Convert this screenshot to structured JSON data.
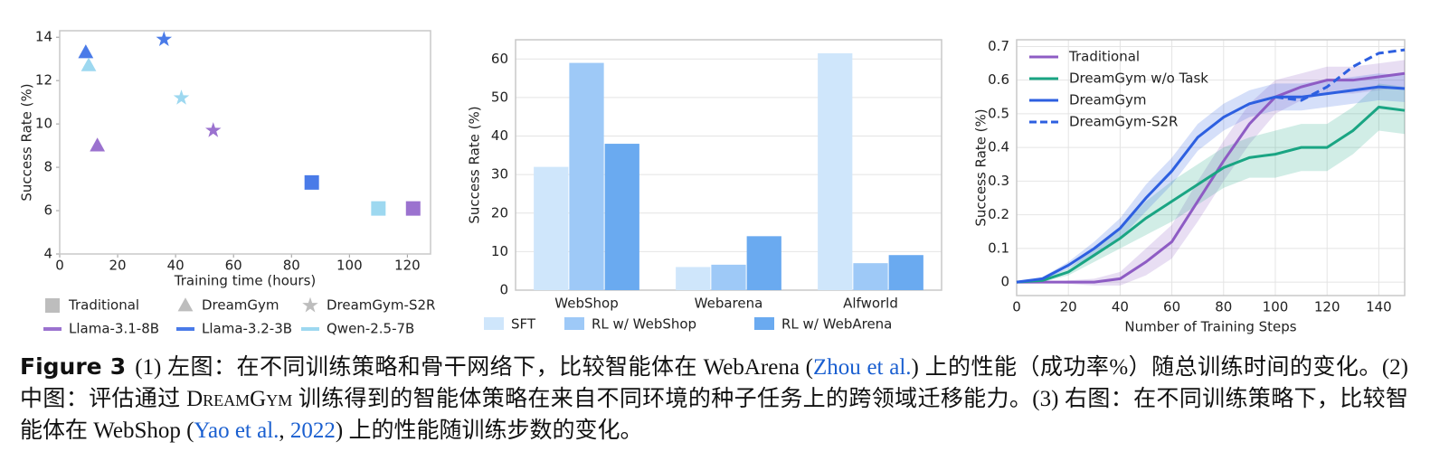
{
  "chart_data": [
    {
      "type": "scatter",
      "xlabel": "Training time (hours)",
      "ylabel": "Success Rate (%)",
      "xlim": [
        0,
        128
      ],
      "xticks": [
        0,
        20,
        40,
        60,
        80,
        100,
        120
      ],
      "ylim": [
        4,
        14.3
      ],
      "yticks": [
        4,
        6,
        8,
        10,
        12,
        14
      ],
      "grid": false,
      "methods": [
        {
          "name": "Traditional",
          "shape": "square"
        },
        {
          "name": "DreamGym",
          "shape": "triangle"
        },
        {
          "name": "DreamGym-S2R",
          "shape": "star"
        }
      ],
      "series": [
        {
          "name": "Llama-3.1-8B",
          "color": "#9b72cf",
          "x": [
            122,
            13,
            53
          ],
          "y": [
            6.1,
            9.0,
            9.7
          ]
        },
        {
          "name": "Llama-3.2-3B",
          "color": "#4a7be8",
          "x": [
            87,
            9,
            36
          ],
          "y": [
            7.3,
            13.3,
            13.9
          ]
        },
        {
          "name": "Qwen-2.5-7B",
          "color": "#9dd8f0",
          "x": [
            110,
            10,
            42
          ],
          "y": [
            6.1,
            12.7,
            11.2
          ]
        }
      ]
    },
    {
      "type": "bar",
      "ylabel": "Success Rate (%)",
      "categories": [
        "WebShop",
        "Webarena",
        "Alfworld"
      ],
      "ylim": [
        0,
        65
      ],
      "yticks": [
        0,
        10,
        20,
        30,
        40,
        50,
        60
      ],
      "grid": true,
      "series": [
        {
          "name": "SFT",
          "color": "#cfe6fb",
          "values": [
            32,
            6,
            61.5
          ]
        },
        {
          "name": "RL w/ WebShop",
          "color": "#9ec9f7",
          "values": [
            59,
            6.6,
            7
          ]
        },
        {
          "name": "RL w/ WebArena",
          "color": "#6aaaf0",
          "values": [
            38,
            14,
            9.1
          ]
        }
      ]
    },
    {
      "type": "line",
      "xlabel": "Number of Training Steps",
      "ylabel": "Success Rate (%)",
      "x": [
        0,
        10,
        20,
        30,
        40,
        50,
        60,
        70,
        80,
        90,
        100,
        110,
        120,
        130,
        140,
        150
      ],
      "xlim": [
        0,
        150
      ],
      "xticks": [
        0,
        20,
        40,
        60,
        80,
        100,
        120,
        140
      ],
      "ylim": [
        -0.04,
        0.72
      ],
      "yticks": [
        0.0,
        0.1,
        0.2,
        0.3,
        0.4,
        0.5,
        0.6,
        0.7
      ],
      "grid": true,
      "series": [
        {
          "name": "Traditional",
          "color": "#8e5cc4",
          "dashed": false,
          "values": [
            0,
            0,
            0,
            0,
            0.01,
            0.06,
            0.12,
            0.24,
            0.36,
            0.47,
            0.55,
            0.58,
            0.6,
            0.6,
            0.61,
            0.62
          ],
          "error": [
            0,
            0,
            0.005,
            0.01,
            0.02,
            0.04,
            0.05,
            0.06,
            0.06,
            0.06,
            0.05,
            0.04,
            0.04,
            0.04,
            0.04,
            0.04
          ]
        },
        {
          "name": "DreamGym w/o Task",
          "color": "#1aa583",
          "dashed": false,
          "values": [
            0,
            0.005,
            0.03,
            0.08,
            0.13,
            0.19,
            0.24,
            0.29,
            0.34,
            0.37,
            0.38,
            0.4,
            0.4,
            0.45,
            0.52,
            0.51
          ],
          "error": [
            0,
            0.005,
            0.01,
            0.02,
            0.03,
            0.05,
            0.06,
            0.06,
            0.06,
            0.06,
            0.07,
            0.07,
            0.07,
            0.07,
            0.07,
            0.07
          ]
        },
        {
          "name": "DreamGym",
          "color": "#2d5fe0",
          "dashed": false,
          "values": [
            0,
            0.01,
            0.05,
            0.1,
            0.16,
            0.25,
            0.33,
            0.43,
            0.49,
            0.53,
            0.55,
            0.55,
            0.56,
            0.57,
            0.58,
            0.575
          ],
          "error": [
            0,
            0.005,
            0.01,
            0.02,
            0.03,
            0.04,
            0.04,
            0.04,
            0.04,
            0.04,
            0.04,
            0.04,
            0.04,
            0.04,
            0.04,
            0.04
          ]
        },
        {
          "name": "DreamGym-S2R",
          "color": "#2d5fe0",
          "dashed": true,
          "values": [
            null,
            null,
            null,
            null,
            null,
            null,
            null,
            null,
            null,
            null,
            0.55,
            0.54,
            0.58,
            0.64,
            0.68,
            0.69
          ]
        }
      ]
    }
  ],
  "caption": {
    "label": "Figure 3",
    "segments": [
      "(1) 左图：在不同训练策略和骨干网络下，比较智能体在 WebArena (",
      "Zhou et al.",
      ") 上的性能（成功率%）随总训练时间的变化。(2) 中图：评估通过 ",
      "DreamGym",
      " 训练得到的智能体策略在来自不同环境的种子任务上的跨领域迁移能力。(3) 右图：在不同训练策略下，比较智能体在 WebShop (",
      "Yao et al.",
      ", ",
      "2022",
      ") 上的性能随训练步数的变化。"
    ]
  }
}
